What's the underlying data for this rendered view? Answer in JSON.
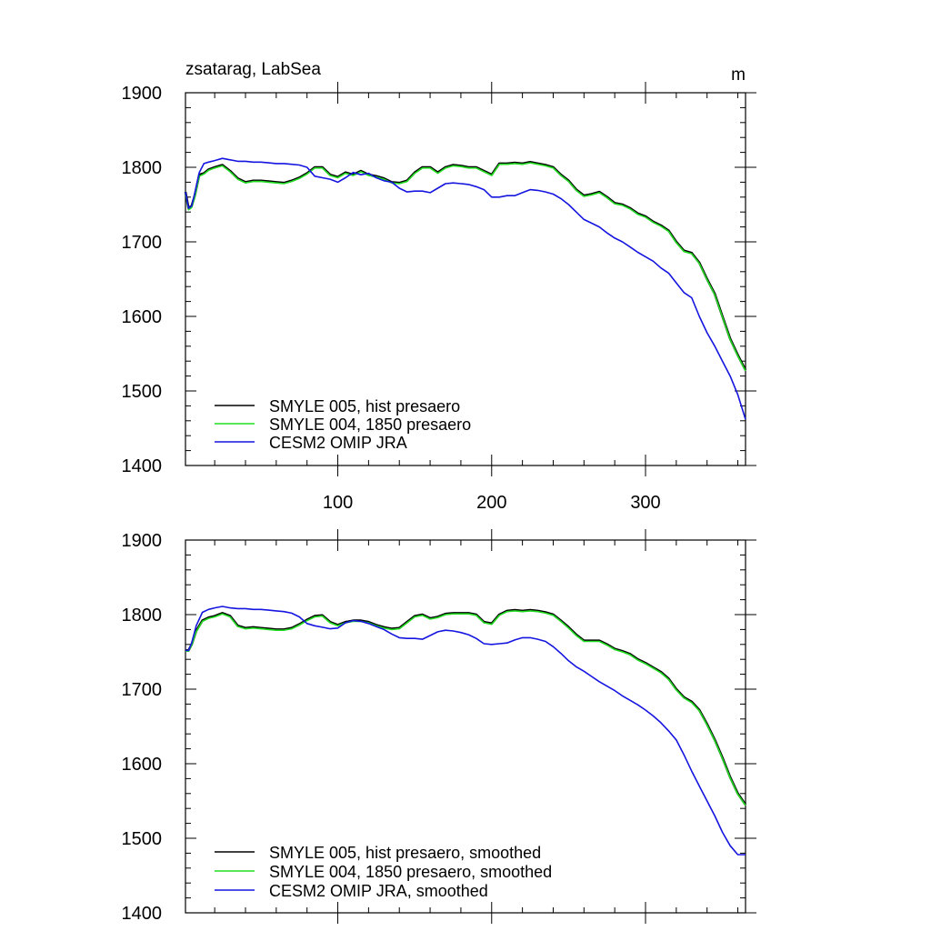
{
  "header": {
    "title": "zsatarag, LabSea",
    "units": "m"
  },
  "chart_data": [
    {
      "type": "line",
      "title": "zsatarag, LabSea",
      "units": "m",
      "xlim": [
        1,
        365
      ],
      "ylim": [
        1400,
        1900
      ],
      "xticks": [
        100,
        200,
        300
      ],
      "yticks": [
        1400,
        1500,
        1600,
        1700,
        1800,
        1900
      ],
      "xtick_labels_shown": true,
      "legend_position": "bottom-left",
      "series": [
        {
          "name": "SMYLE 005, hist presaero",
          "color": "#000000",
          "x": [
            1,
            3,
            5,
            7,
            10,
            13,
            16,
            20,
            25,
            30,
            35,
            40,
            45,
            50,
            55,
            60,
            65,
            70,
            75,
            80,
            85,
            90,
            95,
            100,
            105,
            110,
            115,
            120,
            125,
            130,
            135,
            140,
            145,
            150,
            155,
            160,
            165,
            170,
            175,
            180,
            185,
            190,
            195,
            200,
            205,
            210,
            215,
            220,
            225,
            230,
            235,
            240,
            245,
            250,
            255,
            260,
            265,
            270,
            275,
            280,
            285,
            290,
            295,
            300,
            305,
            310,
            315,
            320,
            325,
            330,
            335,
            340,
            345,
            350,
            355,
            360,
            365
          ],
          "values": [
            1767,
            1745,
            1748,
            1762,
            1790,
            1792,
            1797,
            1800,
            1803,
            1795,
            1785,
            1780,
            1782,
            1782,
            1781,
            1780,
            1779,
            1782,
            1786,
            1792,
            1800,
            1800,
            1790,
            1787,
            1793,
            1790,
            1795,
            1790,
            1788,
            1785,
            1780,
            1779,
            1782,
            1793,
            1800,
            1800,
            1793,
            1800,
            1803,
            1802,
            1800,
            1800,
            1795,
            1790,
            1805,
            1805,
            1806,
            1805,
            1807,
            1805,
            1803,
            1800,
            1790,
            1782,
            1770,
            1762,
            1764,
            1767,
            1760,
            1752,
            1750,
            1745,
            1738,
            1734,
            1727,
            1722,
            1715,
            1700,
            1688,
            1685,
            1672,
            1650,
            1630,
            1600,
            1570,
            1548,
            1528
          ]
        },
        {
          "name": "SMYLE 004, 1850 presaero",
          "color": "#22dd22",
          "x": [
            1,
            3,
            5,
            7,
            10,
            13,
            16,
            20,
            25,
            30,
            35,
            40,
            45,
            50,
            55,
            60,
            65,
            70,
            75,
            80,
            85,
            90,
            95,
            100,
            105,
            110,
            115,
            120,
            125,
            130,
            135,
            140,
            145,
            150,
            155,
            160,
            165,
            170,
            175,
            180,
            185,
            190,
            195,
            200,
            205,
            210,
            215,
            220,
            225,
            230,
            235,
            240,
            245,
            250,
            255,
            260,
            265,
            270,
            275,
            280,
            285,
            290,
            295,
            300,
            305,
            310,
            315,
            320,
            325,
            330,
            335,
            340,
            345,
            350,
            355,
            360,
            365
          ],
          "values": [
            1766,
            1743,
            1746,
            1760,
            1788,
            1791,
            1796,
            1799,
            1802,
            1794,
            1784,
            1779,
            1781,
            1781,
            1780,
            1779,
            1778,
            1781,
            1785,
            1791,
            1799,
            1799,
            1789,
            1786,
            1792,
            1789,
            1794,
            1789,
            1787,
            1784,
            1779,
            1778,
            1781,
            1792,
            1799,
            1799,
            1792,
            1799,
            1802,
            1801,
            1799,
            1799,
            1794,
            1789,
            1804,
            1804,
            1805,
            1804,
            1806,
            1804,
            1802,
            1799,
            1789,
            1781,
            1769,
            1761,
            1763,
            1766,
            1759,
            1751,
            1749,
            1744,
            1737,
            1733,
            1726,
            1721,
            1714,
            1699,
            1687,
            1684,
            1671,
            1649,
            1629,
            1599,
            1569,
            1547,
            1527
          ]
        },
        {
          "name": "CESM2 OMIP JRA",
          "color": "#1515e0",
          "x": [
            1,
            3,
            5,
            7,
            10,
            13,
            16,
            20,
            25,
            30,
            35,
            40,
            45,
            50,
            55,
            60,
            65,
            70,
            75,
            80,
            85,
            90,
            95,
            100,
            105,
            110,
            115,
            120,
            125,
            130,
            135,
            140,
            145,
            150,
            155,
            160,
            165,
            170,
            175,
            180,
            185,
            190,
            195,
            200,
            205,
            210,
            215,
            220,
            225,
            230,
            235,
            240,
            245,
            250,
            255,
            260,
            265,
            270,
            275,
            280,
            285,
            290,
            295,
            300,
            305,
            310,
            315,
            320,
            325,
            330,
            335,
            340,
            345,
            350,
            355,
            360,
            365
          ],
          "values": [
            1767,
            1745,
            1748,
            1765,
            1793,
            1805,
            1807,
            1809,
            1812,
            1810,
            1808,
            1808,
            1807,
            1807,
            1806,
            1805,
            1805,
            1804,
            1803,
            1800,
            1788,
            1786,
            1784,
            1780,
            1786,
            1793,
            1790,
            1792,
            1786,
            1782,
            1780,
            1772,
            1767,
            1768,
            1768,
            1766,
            1772,
            1778,
            1779,
            1778,
            1777,
            1774,
            1770,
            1760,
            1760,
            1762,
            1762,
            1766,
            1770,
            1769,
            1767,
            1764,
            1758,
            1750,
            1740,
            1730,
            1725,
            1720,
            1712,
            1705,
            1700,
            1693,
            1686,
            1680,
            1674,
            1665,
            1658,
            1645,
            1632,
            1625,
            1600,
            1578,
            1560,
            1540,
            1520,
            1495,
            1462
          ]
        }
      ]
    },
    {
      "type": "line",
      "xlim": [
        1,
        365
      ],
      "ylim": [
        1400,
        1900
      ],
      "xticks": [
        100,
        200,
        300
      ],
      "yticks": [
        1400,
        1500,
        1600,
        1700,
        1800,
        1900
      ],
      "xtick_labels_shown": false,
      "legend_position": "bottom-left",
      "series": [
        {
          "name": "SMYLE 005, hist presaero, smoothed",
          "color": "#000000",
          "x": [
            1,
            3,
            5,
            8,
            12,
            16,
            20,
            25,
            30,
            35,
            40,
            45,
            50,
            55,
            60,
            65,
            70,
            75,
            80,
            85,
            90,
            95,
            100,
            105,
            110,
            115,
            120,
            125,
            130,
            135,
            140,
            145,
            150,
            155,
            160,
            165,
            170,
            175,
            180,
            185,
            190,
            195,
            200,
            205,
            210,
            215,
            220,
            225,
            230,
            235,
            240,
            245,
            250,
            255,
            260,
            265,
            270,
            275,
            280,
            285,
            290,
            295,
            300,
            305,
            310,
            315,
            320,
            325,
            330,
            335,
            340,
            345,
            350,
            355,
            360,
            365
          ],
          "values": [
            1752,
            1752,
            1760,
            1778,
            1792,
            1796,
            1798,
            1802,
            1798,
            1785,
            1782,
            1783,
            1782,
            1781,
            1780,
            1780,
            1782,
            1787,
            1793,
            1798,
            1799,
            1790,
            1786,
            1790,
            1792,
            1792,
            1790,
            1786,
            1783,
            1781,
            1782,
            1790,
            1798,
            1800,
            1795,
            1797,
            1801,
            1802,
            1802,
            1802,
            1800,
            1790,
            1788,
            1800,
            1805,
            1806,
            1805,
            1806,
            1805,
            1803,
            1800,
            1792,
            1783,
            1773,
            1765,
            1765,
            1765,
            1760,
            1754,
            1751,
            1747,
            1740,
            1735,
            1729,
            1723,
            1714,
            1700,
            1689,
            1683,
            1672,
            1653,
            1632,
            1608,
            1582,
            1560,
            1545
          ]
        },
        {
          "name": "SMYLE 004, 1850 presaero, smoothed",
          "color": "#22dd22",
          "x": [
            1,
            3,
            5,
            8,
            12,
            16,
            20,
            25,
            30,
            35,
            40,
            45,
            50,
            55,
            60,
            65,
            70,
            75,
            80,
            85,
            90,
            95,
            100,
            105,
            110,
            115,
            120,
            125,
            130,
            135,
            140,
            145,
            150,
            155,
            160,
            165,
            170,
            175,
            180,
            185,
            190,
            195,
            200,
            205,
            210,
            215,
            220,
            225,
            230,
            235,
            240,
            245,
            250,
            255,
            260,
            265,
            270,
            275,
            280,
            285,
            290,
            295,
            300,
            305,
            310,
            315,
            320,
            325,
            330,
            335,
            340,
            345,
            350,
            355,
            360,
            365
          ],
          "values": [
            1751,
            1751,
            1759,
            1777,
            1791,
            1795,
            1797,
            1801,
            1797,
            1784,
            1781,
            1782,
            1781,
            1780,
            1779,
            1779,
            1781,
            1786,
            1792,
            1797,
            1798,
            1789,
            1785,
            1789,
            1791,
            1791,
            1789,
            1785,
            1782,
            1780,
            1781,
            1789,
            1797,
            1799,
            1794,
            1796,
            1800,
            1801,
            1801,
            1801,
            1799,
            1789,
            1787,
            1799,
            1804,
            1805,
            1804,
            1805,
            1804,
            1802,
            1799,
            1791,
            1782,
            1772,
            1764,
            1764,
            1764,
            1759,
            1753,
            1750,
            1746,
            1739,
            1734,
            1728,
            1722,
            1713,
            1699,
            1688,
            1682,
            1671,
            1652,
            1631,
            1607,
            1581,
            1559,
            1544
          ]
        },
        {
          "name": "CESM2 OMIP JRA, smoothed",
          "color": "#1515e0",
          "x": [
            1,
            3,
            5,
            8,
            12,
            16,
            20,
            25,
            30,
            35,
            40,
            45,
            50,
            55,
            60,
            65,
            70,
            75,
            80,
            85,
            90,
            95,
            100,
            105,
            110,
            115,
            120,
            125,
            130,
            135,
            140,
            145,
            150,
            155,
            160,
            165,
            170,
            175,
            180,
            185,
            190,
            195,
            200,
            205,
            210,
            215,
            220,
            225,
            230,
            235,
            240,
            245,
            250,
            255,
            260,
            265,
            270,
            275,
            280,
            285,
            290,
            295,
            300,
            305,
            310,
            315,
            320,
            325,
            330,
            335,
            340,
            345,
            350,
            355,
            360,
            365
          ],
          "values": [
            1752,
            1752,
            1762,
            1785,
            1803,
            1807,
            1809,
            1811,
            1809,
            1808,
            1808,
            1807,
            1807,
            1806,
            1805,
            1804,
            1802,
            1797,
            1788,
            1785,
            1783,
            1781,
            1782,
            1789,
            1792,
            1791,
            1788,
            1784,
            1780,
            1774,
            1769,
            1768,
            1768,
            1767,
            1772,
            1777,
            1779,
            1778,
            1776,
            1773,
            1768,
            1761,
            1760,
            1761,
            1762,
            1766,
            1769,
            1769,
            1767,
            1764,
            1757,
            1748,
            1738,
            1730,
            1724,
            1717,
            1710,
            1704,
            1698,
            1691,
            1685,
            1679,
            1672,
            1664,
            1655,
            1644,
            1632,
            1612,
            1590,
            1570,
            1550,
            1530,
            1508,
            1490,
            1478,
            1478
          ]
        }
      ]
    }
  ]
}
